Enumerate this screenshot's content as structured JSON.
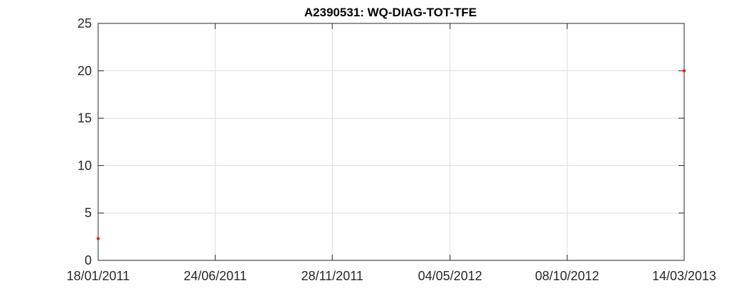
{
  "chart_data": {
    "type": "scatter",
    "title": "A2390531: WQ-DIAG-TOT-TFE",
    "xlabel": "",
    "ylabel": "",
    "x_axis_type": "date",
    "xlim": [
      "2011-01-18",
      "2013-03-14"
    ],
    "ylim": [
      0,
      25
    ],
    "x_ticks": [
      "2011-01-18",
      "2011-06-24",
      "2011-11-28",
      "2012-05-04",
      "2012-10-08",
      "2013-03-14"
    ],
    "x_tick_labels": [
      "18/01/2011",
      "24/06/2011",
      "28/11/2011",
      "04/05/2012",
      "08/10/2012",
      "14/03/2013"
    ],
    "y_ticks": [
      0,
      5,
      10,
      15,
      20,
      25
    ],
    "y_tick_labels": [
      "0",
      "5",
      "10",
      "15",
      "20",
      "25"
    ],
    "grid": true,
    "series": [
      {
        "color": "#ff0000",
        "marker": "dot",
        "points": [
          {
            "x": "2011-01-18",
            "y": 2.3
          },
          {
            "x": "2013-03-14",
            "y": 20.0
          }
        ]
      }
    ]
  }
}
